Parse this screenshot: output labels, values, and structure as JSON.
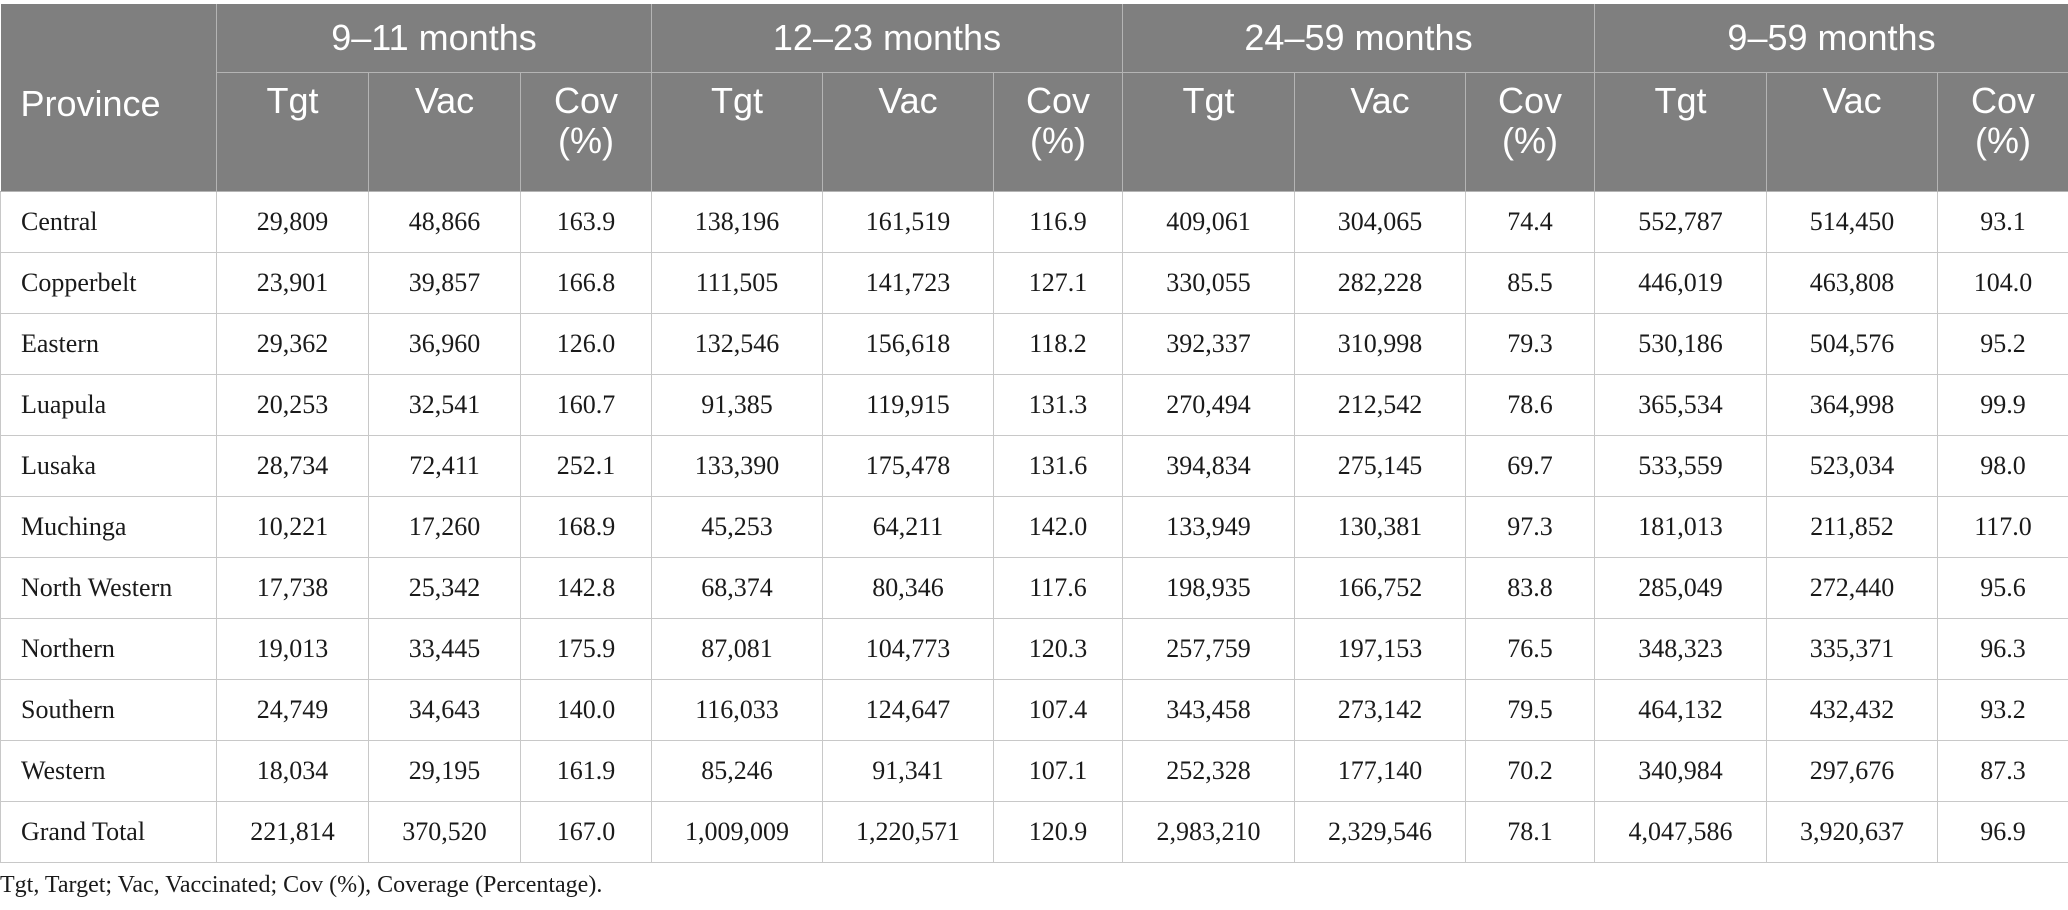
{
  "table": {
    "province_header": "Province",
    "groups": [
      "9–11 months",
      "12–23 months",
      "24–59 months",
      "9–59 months"
    ],
    "sub_headers": [
      "Tgt",
      "Vac",
      "Cov (%)"
    ],
    "rows": [
      [
        "Central",
        "29,809",
        "48,866",
        "163.9",
        "138,196",
        "161,519",
        "116.9",
        "409,061",
        "304,065",
        "74.4",
        "552,787",
        "514,450",
        "93.1"
      ],
      [
        "Copperbelt",
        "23,901",
        "39,857",
        "166.8",
        "111,505",
        "141,723",
        "127.1",
        "330,055",
        "282,228",
        "85.5",
        "446,019",
        "463,808",
        "104.0"
      ],
      [
        "Eastern",
        "29,362",
        "36,960",
        "126.0",
        "132,546",
        "156,618",
        "118.2",
        "392,337",
        "310,998",
        "79.3",
        "530,186",
        "504,576",
        "95.2"
      ],
      [
        "Luapula",
        "20,253",
        "32,541",
        "160.7",
        "91,385",
        "119,915",
        "131.3",
        "270,494",
        "212,542",
        "78.6",
        "365,534",
        "364,998",
        "99.9"
      ],
      [
        "Lusaka",
        "28,734",
        "72,411",
        "252.1",
        "133,390",
        "175,478",
        "131.6",
        "394,834",
        "275,145",
        "69.7",
        "533,559",
        "523,034",
        "98.0"
      ],
      [
        "Muchinga",
        "10,221",
        "17,260",
        "168.9",
        "45,253",
        "64,211",
        "142.0",
        "133,949",
        "130,381",
        "97.3",
        "181,013",
        "211,852",
        "117.0"
      ],
      [
        "North Western",
        "17,738",
        "25,342",
        "142.8",
        "68,374",
        "80,346",
        "117.6",
        "198,935",
        "166,752",
        "83.8",
        "285,049",
        "272,440",
        "95.6"
      ],
      [
        "Northern",
        "19,013",
        "33,445",
        "175.9",
        "87,081",
        "104,773",
        "120.3",
        "257,759",
        "197,153",
        "76.5",
        "348,323",
        "335,371",
        "96.3"
      ],
      [
        "Southern",
        "24,749",
        "34,643",
        "140.0",
        "116,033",
        "124,647",
        "107.4",
        "343,458",
        "273,142",
        "79.5",
        "464,132",
        "432,432",
        "93.2"
      ],
      [
        "Western",
        "18,034",
        "29,195",
        "161.9",
        "85,246",
        "91,341",
        "107.1",
        "252,328",
        "177,140",
        "70.2",
        "340,984",
        "297,676",
        "87.3"
      ],
      [
        "Grand Total",
        "221,814",
        "370,520",
        "167.0",
        "1,009,009",
        "1,220,571",
        "120.9",
        "2,983,210",
        "2,329,546",
        "78.1",
        "4,047,586",
        "3,920,637",
        "96.9"
      ]
    ]
  },
  "footnote": "Tgt, Target; Vac, Vaccinated; Cov (%), Coverage (Percentage)."
}
